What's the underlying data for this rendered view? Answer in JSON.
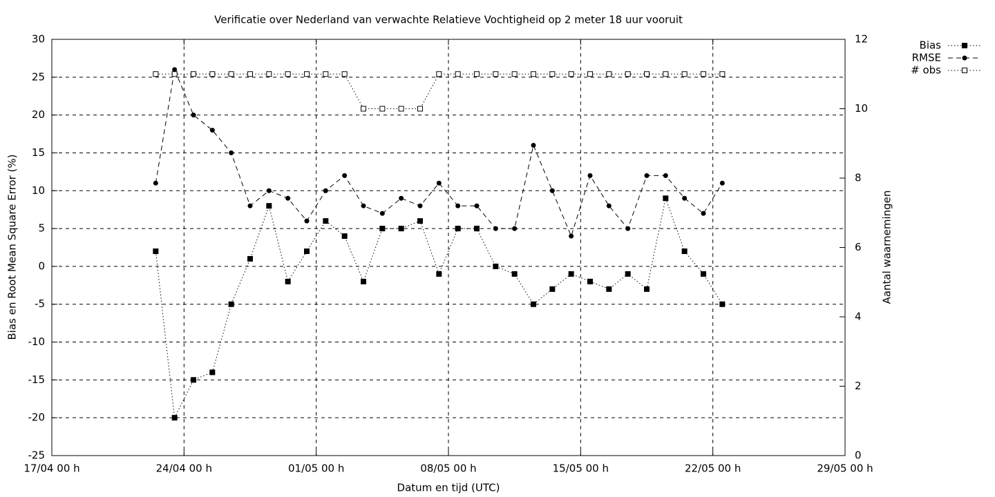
{
  "chart_data": {
    "type": "line",
    "title": "Verificatie over Nederland van verwachte Relatieve Vochtigheid op 2 meter 18 uur vooruit",
    "xlabel": "Datum en tijd (UTC)",
    "ylabel": "Bias en Root Mean Square Error (%)",
    "y2label": "Aantal waarnemingen",
    "x": [
      5.5,
      6.5,
      7.5,
      8.5,
      9.5,
      10.5,
      11.5,
      12.5,
      13.5,
      14.5,
      15.5,
      16.5,
      17.5,
      18.5,
      19.5,
      20.5,
      21.5,
      22.5,
      23.5,
      24.5,
      25.5,
      26.5,
      27.5,
      28.5,
      29.5,
      30.5,
      31.5,
      32.5,
      33.5,
      34.5,
      35.5
    ],
    "xlim": [
      0,
      42
    ],
    "xticks": [
      {
        "value": 0,
        "label": "17/04 00 h"
      },
      {
        "value": 7,
        "label": "24/04 00 h"
      },
      {
        "value": 14,
        "label": "01/05 00 h"
      },
      {
        "value": 21,
        "label": "08/05 00 h"
      },
      {
        "value": 28,
        "label": "15/05 00 h"
      },
      {
        "value": 35,
        "label": "22/05 00 h"
      },
      {
        "value": 42,
        "label": "29/05 00 h"
      }
    ],
    "ylim": [
      -25,
      30
    ],
    "yticks": [
      -25,
      -20,
      -15,
      -10,
      -5,
      0,
      5,
      10,
      15,
      20,
      25,
      30
    ],
    "y2lim": [
      0,
      12
    ],
    "y2ticks": [
      0,
      2,
      4,
      6,
      8,
      10,
      12
    ],
    "grid": true,
    "legend": "top-right",
    "series": [
      {
        "name": "Bias",
        "color": "#000000",
        "line_style": "dotted",
        "marker": "filled-square",
        "values": [
          2,
          -20,
          -15,
          -14,
          -5,
          1,
          8,
          -2,
          2,
          6,
          4,
          -2,
          5,
          5,
          6,
          -1,
          5,
          5,
          0,
          -1,
          -5,
          -3,
          -1,
          -2,
          -3,
          -1,
          -3,
          9,
          2,
          -1,
          -5
        ]
      },
      {
        "name": "RMSE",
        "color": "#000000",
        "line_style": "dashed",
        "marker": "filled-circle",
        "values": [
          11,
          26,
          20,
          18,
          15,
          8,
          10,
          9,
          6,
          10,
          12,
          8,
          7,
          9,
          8,
          11,
          8,
          8,
          5,
          5,
          16,
          10,
          4,
          12,
          8,
          5,
          12,
          12,
          9,
          7,
          11
        ]
      },
      {
        "name": "# obs",
        "color": "#000000",
        "line_style": "dotted",
        "marker": "open-square",
        "axis": "y2",
        "values": [
          11,
          11,
          11,
          11,
          11,
          11,
          11,
          11,
          11,
          11,
          11,
          10,
          10,
          10,
          10,
          11,
          11,
          11,
          11,
          11,
          11,
          11,
          11,
          11,
          11,
          11,
          11,
          11,
          11,
          11,
          11
        ]
      }
    ]
  }
}
